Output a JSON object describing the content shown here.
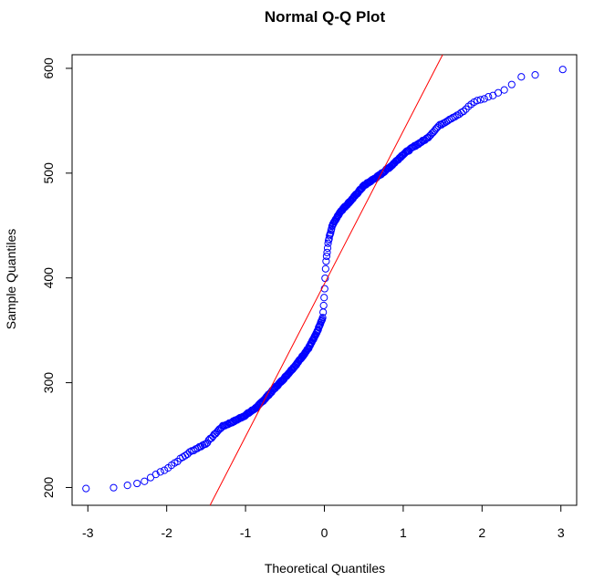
{
  "chart_data": {
    "type": "scatter",
    "title": "Normal Q-Q Plot",
    "xlabel": "Theoretical Quantiles",
    "ylabel": "Sample Quantiles",
    "xlim": [
      -3.2,
      3.2
    ],
    "ylim": [
      183,
      613
    ],
    "x_ticks": [
      "-3",
      "-2",
      "-1",
      "0",
      "1",
      "2",
      "3"
    ],
    "y_ticks": [
      "200",
      "300",
      "400",
      "500",
      "600"
    ],
    "grid": false,
    "legend": "none",
    "point_color": "#0000ff",
    "line_color": "#ff0000",
    "reference_line": {
      "x": [
        -1.45,
        1.5
      ],
      "y": [
        183,
        613
      ]
    },
    "quantile_curve": [
      [
        -3.0,
        199
      ],
      [
        -2.7,
        199.5
      ],
      [
        -2.5,
        202
      ],
      [
        -2.3,
        205
      ],
      [
        -2.15,
        212
      ],
      [
        -2.0,
        218
      ],
      [
        -1.85,
        226
      ],
      [
        -1.7,
        234
      ],
      [
        -1.5,
        242
      ],
      [
        -1.4,
        250
      ],
      [
        -1.3,
        258
      ],
      [
        -1.15,
        263
      ],
      [
        -1.0,
        269
      ],
      [
        -0.85,
        277
      ],
      [
        -0.75,
        285
      ],
      [
        -0.6,
        297
      ],
      [
        -0.5,
        305
      ],
      [
        -0.35,
        318
      ],
      [
        -0.2,
        333
      ],
      [
        -0.1,
        347
      ],
      [
        -0.02,
        362
      ],
      [
        0.0,
        385
      ],
      [
        0.02,
        415
      ],
      [
        0.05,
        435
      ],
      [
        0.1,
        450
      ],
      [
        0.2,
        463
      ],
      [
        0.35,
        475
      ],
      [
        0.5,
        488
      ],
      [
        0.6,
        493
      ],
      [
        0.7,
        498
      ],
      [
        0.85,
        507
      ],
      [
        1.0,
        518
      ],
      [
        1.15,
        526
      ],
      [
        1.3,
        533
      ],
      [
        1.45,
        545
      ],
      [
        1.6,
        552
      ],
      [
        1.75,
        558
      ],
      [
        1.9,
        568
      ],
      [
        2.1,
        573
      ],
      [
        2.3,
        580
      ],
      [
        2.5,
        592
      ],
      [
        2.7,
        594
      ],
      [
        3.03,
        599
      ]
    ],
    "n_points": 400
  }
}
